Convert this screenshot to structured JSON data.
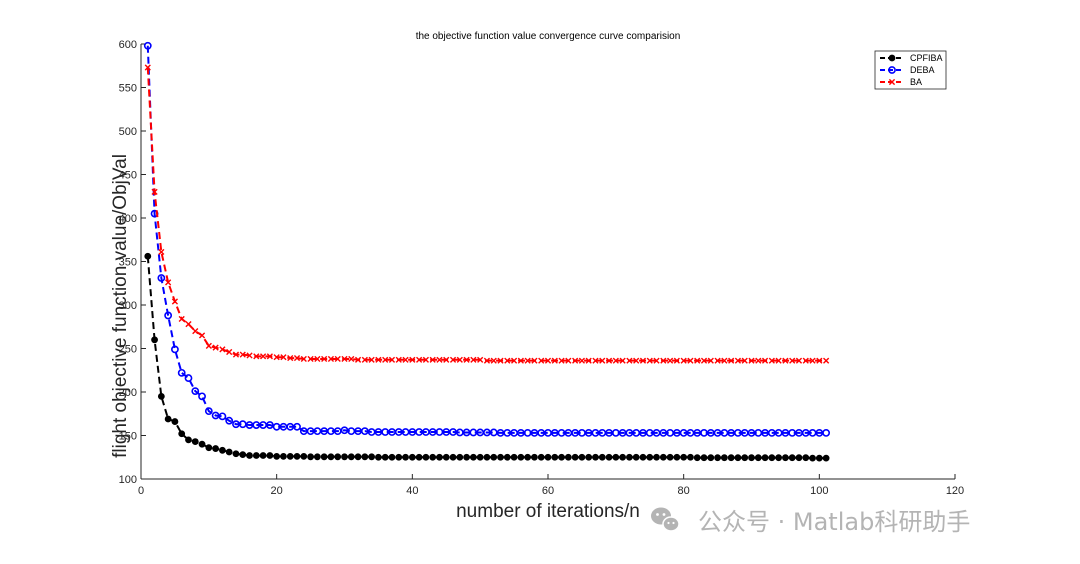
{
  "chart_data": {
    "type": "line",
    "title": "the objective function value convergence curve comparision",
    "xlabel": "number of iterations/n",
    "ylabel": "flight objective function value/ObjVal",
    "xlim": [
      0,
      120
    ],
    "ylim": [
      100,
      600
    ],
    "xticks": [
      0,
      20,
      40,
      60,
      80,
      100,
      120
    ],
    "yticks": [
      100,
      150,
      200,
      250,
      300,
      350,
      400,
      450,
      500,
      550,
      600
    ],
    "legend_position": "top-right",
    "grid": false,
    "x": [
      1,
      2,
      3,
      4,
      5,
      6,
      7,
      8,
      9,
      10,
      11,
      12,
      13,
      14,
      15,
      16,
      17,
      18,
      19,
      20,
      21,
      22,
      23,
      24,
      25,
      26,
      27,
      28,
      29,
      30,
      31,
      32,
      33,
      34,
      35,
      36,
      37,
      38,
      39,
      40,
      41,
      42,
      43,
      44,
      45,
      46,
      47,
      48,
      49,
      50,
      51,
      52,
      53,
      54,
      55,
      56,
      57,
      58,
      59,
      60,
      61,
      62,
      63,
      64,
      65,
      66,
      67,
      68,
      69,
      70,
      71,
      72,
      73,
      74,
      75,
      76,
      77,
      78,
      79,
      80,
      81,
      82,
      83,
      84,
      85,
      86,
      87,
      88,
      89,
      90,
      91,
      92,
      93,
      94,
      95,
      96,
      97,
      98,
      99,
      100,
      101
    ],
    "series": [
      {
        "name": "CPFIBA",
        "color": "#000000",
        "marker": "filled-circle",
        "values": [
          356,
          260,
          195,
          169,
          166,
          152,
          145,
          143,
          140,
          136,
          135,
          133,
          131,
          129,
          128,
          127,
          127,
          127,
          127,
          126,
          126,
          126,
          126,
          126,
          125.5,
          125.5,
          125.5,
          125.5,
          125.5,
          125.5,
          125.5,
          125.5,
          125.5,
          125.5,
          125,
          125,
          125,
          125,
          125,
          125,
          125,
          125,
          125,
          125,
          125,
          125,
          125,
          125,
          125,
          125,
          125,
          125,
          125,
          125,
          125,
          125,
          125,
          125,
          125,
          125,
          125,
          125,
          125,
          125,
          125,
          125,
          125,
          125,
          125,
          125,
          125,
          125,
          125,
          125,
          125,
          125,
          125,
          125,
          125,
          125,
          125,
          124.5,
          124.5,
          124.5,
          124.5,
          124.5,
          124.5,
          124.5,
          124.5,
          124.5,
          124.5,
          124.5,
          124.5,
          124.5,
          124.5,
          124.5,
          124.5,
          124.5,
          124,
          124,
          124
        ]
      },
      {
        "name": "DEBA",
        "color": "#0000ff",
        "marker": "open-circle",
        "values": [
          598,
          405,
          331,
          288,
          249,
          222,
          216,
          201,
          195,
          178,
          173,
          172,
          167,
          163,
          163,
          162,
          162,
          162,
          162,
          160,
          160,
          160,
          160,
          155,
          155,
          155,
          155,
          155,
          155,
          156,
          155,
          155,
          155,
          154,
          154,
          154,
          154,
          154,
          154,
          154,
          154,
          154,
          154,
          154,
          154,
          154,
          153.5,
          153.5,
          153.5,
          153.5,
          153.5,
          153.5,
          153,
          153,
          153,
          153,
          153,
          153,
          153,
          153,
          153,
          153,
          153,
          153,
          153,
          153,
          153,
          153,
          153,
          153,
          153,
          153,
          153,
          153,
          153,
          153,
          153,
          153,
          153,
          153,
          153,
          153,
          153,
          153,
          153,
          153,
          153,
          153,
          153,
          153,
          153,
          153,
          153,
          153,
          153,
          153,
          153,
          153,
          153,
          153,
          153
        ]
      },
      {
        "name": "BA",
        "color": "#ff0000",
        "marker": "x",
        "values": [
          573,
          430,
          361,
          326,
          304,
          284,
          278,
          270,
          265,
          253,
          251,
          249,
          246,
          243,
          243,
          242,
          241,
          241,
          241,
          240,
          240,
          239,
          239,
          238,
          238,
          238,
          238,
          238,
          238,
          238,
          238,
          237,
          237,
          237,
          237,
          237,
          237,
          237,
          237,
          237,
          237,
          237,
          237,
          237,
          237,
          237,
          237,
          237,
          237,
          237,
          236,
          236,
          236,
          236,
          236,
          236,
          236,
          236,
          236,
          236,
          236,
          236,
          236,
          236,
          236,
          236,
          236,
          236,
          236,
          236,
          236,
          236,
          236,
          236,
          236,
          236,
          236,
          236,
          236,
          236,
          236,
          236,
          236,
          236,
          236,
          236,
          236,
          236,
          236,
          236,
          236,
          236,
          236,
          236,
          236,
          236,
          236,
          236,
          236,
          236,
          236
        ]
      }
    ]
  },
  "watermark": {
    "text": "公众号 · Matlab科研助手"
  }
}
